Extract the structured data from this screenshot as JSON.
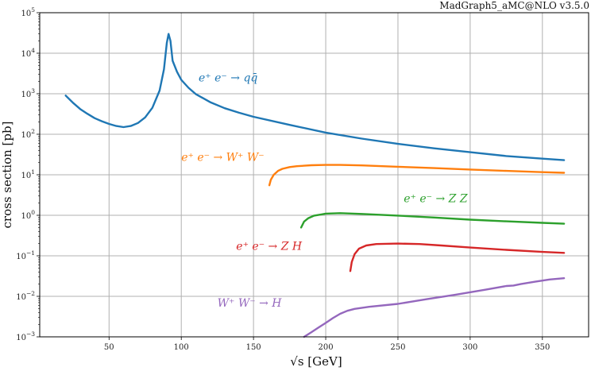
{
  "chart_data": {
    "type": "line",
    "corner_text": "MadGraph5_aMC@NLO v3.5.0",
    "xlabel": "√s [GeV]",
    "ylabel": "cross section [pb]",
    "xlim": [
      2,
      382
    ],
    "ylim": [
      0.001,
      100000
    ],
    "yscale": "log",
    "grid": true,
    "xticks": [
      50,
      100,
      150,
      200,
      250,
      300,
      350
    ],
    "yticks": [
      {
        "value": 0.001,
        "base": "10",
        "exp": "−3"
      },
      {
        "value": 0.01,
        "base": "10",
        "exp": "−2"
      },
      {
        "value": 0.1,
        "base": "10",
        "exp": "−1"
      },
      {
        "value": 1,
        "base": "10",
        "exp": "0"
      },
      {
        "value": 10,
        "base": "10",
        "exp": "1"
      },
      {
        "value": 100,
        "base": "10",
        "exp": "2"
      },
      {
        "value": 1000,
        "base": "10",
        "exp": "3"
      },
      {
        "value": 10000,
        "base": "10",
        "exp": "4"
      },
      {
        "value": 100000,
        "base": "10",
        "exp": "5"
      }
    ],
    "series": [
      {
        "label": "e⁺ e⁻ → qq̄",
        "color": "#1f77b4",
        "label_at": [
          112,
          2000
        ],
        "points": [
          [
            20,
            900
          ],
          [
            25,
            600
          ],
          [
            30,
            420
          ],
          [
            35,
            320
          ],
          [
            40,
            250
          ],
          [
            45,
            210
          ],
          [
            50,
            180
          ],
          [
            55,
            160
          ],
          [
            60,
            150
          ],
          [
            65,
            160
          ],
          [
            70,
            190
          ],
          [
            75,
            260
          ],
          [
            80,
            450
          ],
          [
            85,
            1200
          ],
          [
            88,
            4000
          ],
          [
            90,
            18000
          ],
          [
            91.2,
            30000
          ],
          [
            92.5,
            20000
          ],
          [
            94,
            6500
          ],
          [
            97,
            3500
          ],
          [
            100,
            2200
          ],
          [
            105,
            1400
          ],
          [
            110,
            980
          ],
          [
            120,
            620
          ],
          [
            130,
            440
          ],
          [
            140,
            340
          ],
          [
            150,
            270
          ],
          [
            175,
            170
          ],
          [
            200,
            110
          ],
          [
            225,
            78
          ],
          [
            250,
            58
          ],
          [
            275,
            45
          ],
          [
            300,
            36
          ],
          [
            325,
            29
          ],
          [
            350,
            25
          ],
          [
            365,
            23
          ]
        ]
      },
      {
        "label": "e⁺ e⁻ → W⁺ W⁻",
        "color": "#ff7f0e",
        "label_at": [
          100,
          22
        ],
        "points": [
          [
            161,
            5.5
          ],
          [
            162,
            7.5
          ],
          [
            164,
            10
          ],
          [
            167,
            12.5
          ],
          [
            170,
            14
          ],
          [
            175,
            15.5
          ],
          [
            180,
            16.3
          ],
          [
            190,
            17.2
          ],
          [
            200,
            17.5
          ],
          [
            210,
            17.5
          ],
          [
            225,
            17
          ],
          [
            250,
            15.8
          ],
          [
            275,
            14.6
          ],
          [
            300,
            13.5
          ],
          [
            325,
            12.5
          ],
          [
            350,
            11.6
          ],
          [
            365,
            11.2
          ]
        ]
      },
      {
        "label": "e⁺ e⁻ → Z Z",
        "color": "#2ca02c",
        "label_at": [
          254,
          2.1
        ],
        "points": [
          [
            183,
            0.5
          ],
          [
            185,
            0.7
          ],
          [
            188,
            0.85
          ],
          [
            192,
            0.98
          ],
          [
            197,
            1.05
          ],
          [
            200,
            1.1
          ],
          [
            210,
            1.13
          ],
          [
            225,
            1.08
          ],
          [
            250,
            0.98
          ],
          [
            275,
            0.88
          ],
          [
            300,
            0.78
          ],
          [
            325,
            0.71
          ],
          [
            350,
            0.65
          ],
          [
            365,
            0.62
          ]
        ]
      },
      {
        "label": "e⁺ e⁻ → Z H",
        "color": "#d62728",
        "label_at": [
          138,
          0.14
        ],
        "points": [
          [
            217,
            0.042
          ],
          [
            218,
            0.07
          ],
          [
            220,
            0.11
          ],
          [
            223,
            0.15
          ],
          [
            228,
            0.18
          ],
          [
            235,
            0.195
          ],
          [
            250,
            0.2
          ],
          [
            265,
            0.195
          ],
          [
            280,
            0.18
          ],
          [
            300,
            0.16
          ],
          [
            325,
            0.14
          ],
          [
            350,
            0.125
          ],
          [
            365,
            0.118
          ]
        ]
      },
      {
        "label": "W⁺ W⁻ → H",
        "color": "#9467bd",
        "label_at": [
          125,
          0.0055
        ],
        "points": [
          [
            185,
            0.001
          ],
          [
            190,
            0.0013
          ],
          [
            195,
            0.0017
          ],
          [
            200,
            0.0022
          ],
          [
            205,
            0.0029
          ],
          [
            210,
            0.0037
          ],
          [
            215,
            0.0044
          ],
          [
            220,
            0.0049
          ],
          [
            230,
            0.0055
          ],
          [
            250,
            0.0065
          ],
          [
            270,
            0.0085
          ],
          [
            290,
            0.011
          ],
          [
            310,
            0.0145
          ],
          [
            325,
            0.018
          ],
          [
            330,
            0.0185
          ],
          [
            335,
            0.02
          ],
          [
            345,
            0.023
          ],
          [
            355,
            0.026
          ],
          [
            365,
            0.028
          ]
        ]
      }
    ]
  }
}
